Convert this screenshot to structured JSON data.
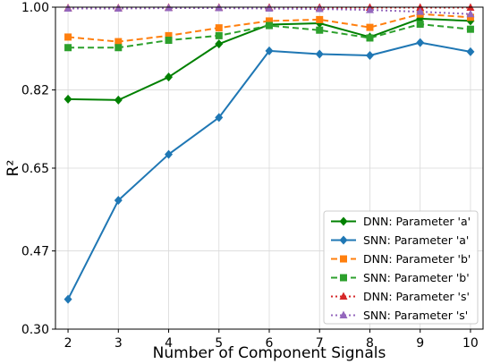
{
  "chart_data": {
    "type": "line",
    "title": "",
    "xlabel": "Number of Component Signals",
    "ylabel": "R²",
    "x": [
      2,
      3,
      4,
      5,
      6,
      7,
      8,
      9,
      10
    ],
    "xlim": [
      1.75,
      10.25
    ],
    "ylim": [
      0.3,
      1.0
    ],
    "yticks": [
      0.3,
      0.47,
      0.65,
      0.82,
      1.0
    ],
    "ytick_labels": [
      "0.30",
      "0.47",
      "0.65",
      "0.82",
      "1.00"
    ],
    "grid": true,
    "legend_position": "lower-right",
    "series": [
      {
        "name": "DNN: Parameter 'a'",
        "color": "#008000",
        "linestyle": "solid",
        "marker": "diamond",
        "values": [
          0.8,
          0.798,
          0.848,
          0.92,
          0.962,
          0.965,
          0.935,
          0.975,
          0.97
        ]
      },
      {
        "name": "SNN: Parameter 'a'",
        "color": "#1f77b4",
        "linestyle": "solid",
        "marker": "diamond",
        "values": [
          0.365,
          0.58,
          0.68,
          0.76,
          0.905,
          0.898,
          0.895,
          0.923,
          0.903
        ]
      },
      {
        "name": "DNN: Parameter 'b'",
        "color": "#ff7f0e",
        "linestyle": "dashed",
        "marker": "square",
        "values": [
          0.935,
          0.925,
          0.938,
          0.955,
          0.97,
          0.973,
          0.956,
          0.985,
          0.978
        ]
      },
      {
        "name": "SNN: Parameter 'b'",
        "color": "#2ca02c",
        "linestyle": "dashed",
        "marker": "square",
        "values": [
          0.912,
          0.912,
          0.928,
          0.938,
          0.96,
          0.95,
          0.933,
          0.963,
          0.952
        ]
      },
      {
        "name": "DNN: Parameter 's'",
        "color": "#d62728",
        "linestyle": "dotted",
        "marker": "triangle",
        "values": [
          0.998,
          0.998,
          0.999,
          0.999,
          0.999,
          0.999,
          0.999,
          0.999,
          0.999
        ]
      },
      {
        "name": "SNN: Parameter 's'",
        "color": "#9467bd",
        "linestyle": "dotted",
        "marker": "triangle",
        "values": [
          0.997,
          0.997,
          0.998,
          0.998,
          0.997,
          0.996,
          0.994,
          0.99,
          0.985
        ]
      }
    ]
  }
}
